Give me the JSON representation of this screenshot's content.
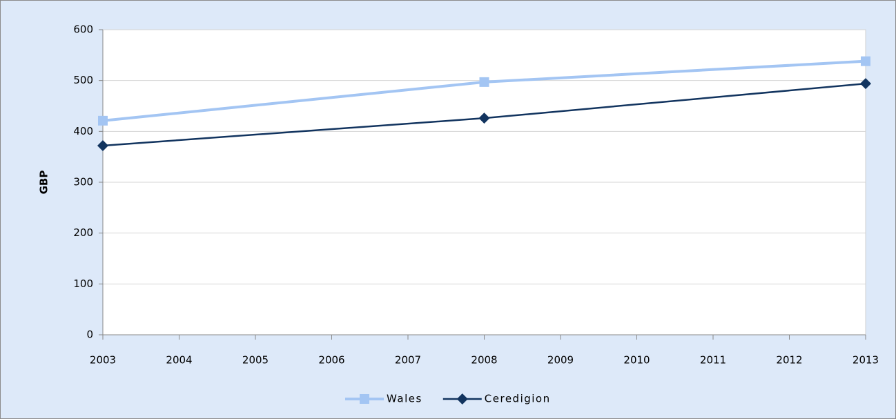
{
  "chart_data": {
    "type": "line",
    "y_label": "GBP",
    "x": [
      2003,
      2008,
      2013
    ],
    "series": [
      {
        "name": "Wales",
        "color": "#a3c5f3",
        "marker": "square",
        "width": 4,
        "values": [
          421,
          497,
          538
        ]
      },
      {
        "name": "Ceredigion",
        "color": "#12345f",
        "marker": "diamond",
        "width": 2.5,
        "values": [
          372,
          426,
          494
        ]
      }
    ],
    "xlim": [
      2003,
      2013
    ],
    "xticks": [
      2003,
      2004,
      2005,
      2006,
      2007,
      2008,
      2009,
      2010,
      2011,
      2012,
      2013
    ],
    "ylim": [
      0,
      600
    ],
    "yticks": [
      0,
      100,
      200,
      300,
      400,
      500,
      600
    ],
    "grid": true,
    "legend": "bottom"
  }
}
